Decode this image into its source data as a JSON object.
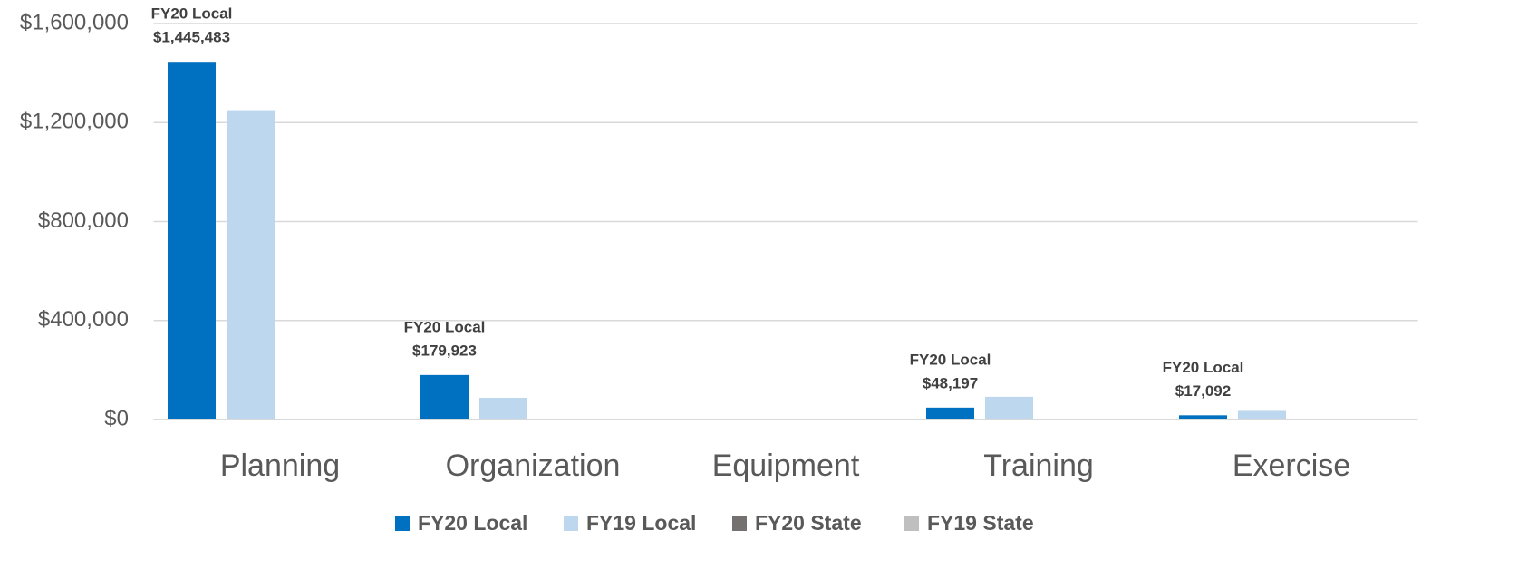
{
  "chart_data": {
    "type": "bar",
    "categories": [
      "Planning",
      "Organization",
      "Equipment",
      "Training",
      "Exercise"
    ],
    "series": [
      {
        "name": "FY20 Local",
        "color": "#0070c0",
        "values": [
          1445483,
          179923,
          0,
          48197,
          17092
        ],
        "value_labels": [
          "$1,445,483",
          "$179,923",
          null,
          "$48,197",
          "$17,092"
        ]
      },
      {
        "name": "FY19 Local",
        "color": "#bdd7ee",
        "values": [
          1250000,
          88000,
          0,
          92000,
          35000
        ]
      },
      {
        "name": "FY20 State",
        "color": "#767171",
        "values": [
          0,
          0,
          0,
          0,
          0
        ]
      },
      {
        "name": "FY19 State",
        "color": "#bfbfbf",
        "values": [
          0,
          0,
          0,
          0,
          0
        ]
      }
    ],
    "ylim": [
      0,
      1600000
    ],
    "yticks": [
      {
        "value": 0,
        "label": "$0"
      },
      {
        "value": 400000,
        "label": "$400,000"
      },
      {
        "value": 800000,
        "label": "$800,000"
      },
      {
        "value": 1200000,
        "label": "$1,200,000"
      },
      {
        "value": 1600000,
        "label": "$1,600,000"
      }
    ],
    "grid": true,
    "legend": "bottom"
  }
}
